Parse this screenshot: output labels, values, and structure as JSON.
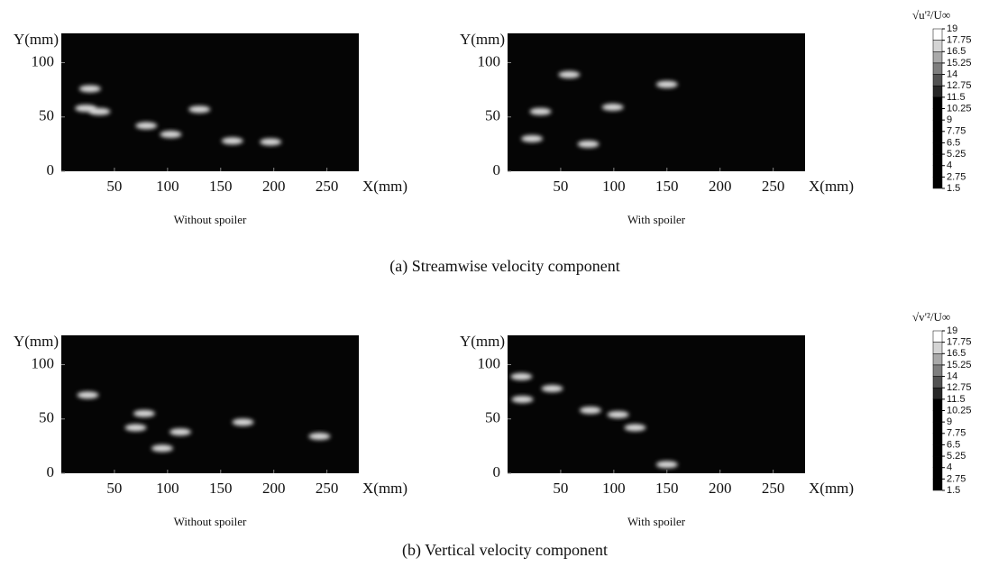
{
  "chart_data": [
    {
      "type": "scatter",
      "subtitle": "Without spoiler",
      "xlabel": "X(mm)",
      "ylabel": "Y(mm)",
      "xlim": [
        0,
        280
      ],
      "ylim": [
        0,
        127
      ],
      "xticks": [
        50,
        100,
        150,
        200,
        250
      ],
      "yticks": [
        0,
        50,
        100
      ],
      "color": "#ffffff",
      "x": [
        27,
        23,
        36,
        80,
        130,
        161,
        197,
        103
      ],
      "y": [
        76,
        58,
        55,
        42,
        57,
        28,
        27,
        34
      ]
    },
    {
      "type": "scatter",
      "subtitle": "With spoiler",
      "xlabel": "X(mm)",
      "ylabel": "Y(mm)",
      "xlim": [
        0,
        280
      ],
      "ylim": [
        0,
        127
      ],
      "xticks": [
        50,
        100,
        150,
        200,
        250
      ],
      "yticks": [
        0,
        50,
        100
      ],
      "color": "#ffffff",
      "x": [
        58,
        99,
        76,
        23,
        150,
        31
      ],
      "y": [
        89,
        59,
        25,
        30,
        80,
        55
      ]
    },
    {
      "type": "scatter",
      "subtitle": "Without spoiler",
      "xlabel": "X(mm)",
      "ylabel": "Y(mm)",
      "xlim": [
        0,
        280
      ],
      "ylim": [
        0,
        127
      ],
      "xticks": [
        50,
        100,
        150,
        200,
        250
      ],
      "yticks": [
        0,
        50,
        100
      ],
      "color": "#ffffff",
      "x": [
        25,
        70,
        112,
        78,
        171,
        95,
        243
      ],
      "y": [
        72,
        42,
        38,
        55,
        47,
        23,
        34
      ]
    },
    {
      "type": "scatter",
      "subtitle": "With spoiler",
      "xlabel": "X(mm)",
      "ylabel": "Y(mm)",
      "xlim": [
        0,
        280
      ],
      "ylim": [
        0,
        127
      ],
      "xticks": [
        50,
        100,
        150,
        200,
        250
      ],
      "yticks": [
        0,
        50,
        100
      ],
      "color": "#ffffff",
      "x": [
        13,
        42,
        78,
        104,
        120,
        150,
        14
      ],
      "y": [
        89,
        78,
        58,
        54,
        42,
        8,
        68
      ]
    }
  ],
  "captions": [
    "(a)  Streamwise velocity component",
    "(b)  Vertical velocity component"
  ],
  "colorbars": [
    {
      "title": "√u'²/U∞",
      "lim": [
        1.5,
        19
      ],
      "ticks": [
        19,
        17.75,
        16.5,
        15.25,
        14,
        12.75,
        11.5,
        10.25,
        9,
        7.75,
        6.5,
        5.25,
        4,
        2.75,
        1.5
      ]
    },
    {
      "title": "√v'²/U∞",
      "lim": [
        1.5,
        19
      ],
      "ticks": [
        19,
        17.75,
        16.5,
        15.25,
        14,
        12.75,
        11.5,
        10.25,
        9,
        7.75,
        6.5,
        5.25,
        4,
        2.75,
        1.5
      ]
    }
  ]
}
